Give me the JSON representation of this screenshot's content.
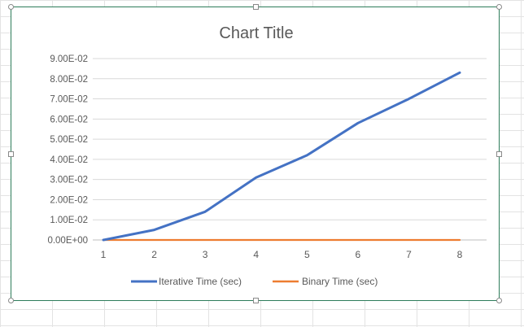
{
  "chart_data": {
    "type": "line",
    "title": "Chart Title",
    "xlabel": "",
    "ylabel": "",
    "x": [
      1,
      2,
      3,
      4,
      5,
      6,
      7,
      8
    ],
    "x_tick_labels": [
      "1",
      "2",
      "3",
      "4",
      "5",
      "6",
      "7",
      "8"
    ],
    "ylim": [
      0,
      0.09
    ],
    "y_ticks": [
      0,
      0.01,
      0.02,
      0.03,
      0.04,
      0.05,
      0.06,
      0.07,
      0.08,
      0.09
    ],
    "y_tick_labels": [
      "0.00E+00",
      "1.00E-02",
      "2.00E-02",
      "3.00E-02",
      "4.00E-02",
      "5.00E-02",
      "6.00E-02",
      "7.00E-02",
      "8.00E-02",
      "9.00E-02"
    ],
    "grid": true,
    "legend_position": "bottom",
    "series": [
      {
        "name": "Iterative Time (sec)",
        "color": "#4472c4",
        "values": [
          0.0,
          0.005,
          0.014,
          0.031,
          0.042,
          0.058,
          0.07,
          0.083
        ]
      },
      {
        "name": "Binary Time (sec)",
        "color": "#ed7d31",
        "values": [
          2e-05,
          2e-05,
          2e-05,
          2e-05,
          2e-05,
          2e-05,
          2e-05,
          2e-05
        ]
      }
    ]
  }
}
